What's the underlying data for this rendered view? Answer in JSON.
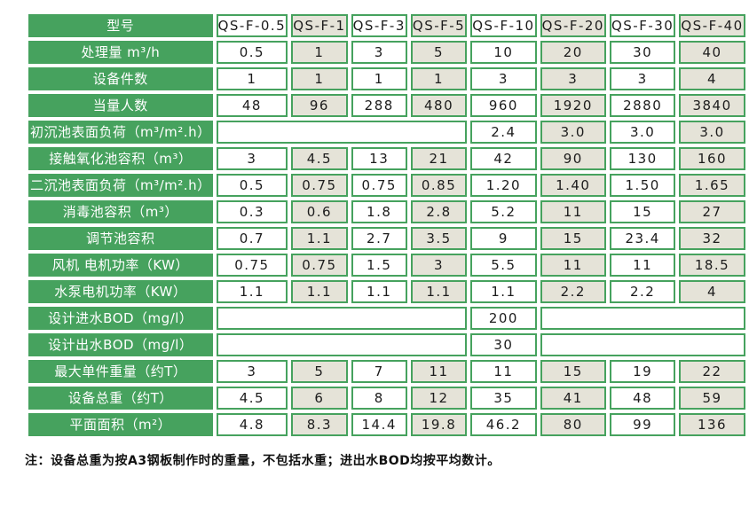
{
  "colors": {
    "green": "#46A25E",
    "shaded_cell": "#E5E3D8",
    "cell_text": "#1c1c1c",
    "label_text": "#ffffff"
  },
  "table": {
    "header": {
      "label": "型号",
      "models": [
        "QS-F-0.5",
        "QS-F-1",
        "QS-F-3",
        "QS-F-5",
        "QS-F-10",
        "QS-F-20",
        "QS-F-30",
        "QS-F-40"
      ]
    },
    "rows": [
      {
        "label": "处理量 m³/h",
        "cells": [
          "0.5",
          "1",
          "3",
          "5",
          "10",
          "20",
          "30",
          "40"
        ]
      },
      {
        "label": "设备件数",
        "cells": [
          "1",
          "1",
          "1",
          "1",
          "3",
          "3",
          "3",
          "4"
        ]
      },
      {
        "label": "当量人数",
        "cells": [
          "48",
          "96",
          "288",
          "480",
          "960",
          "1920",
          "2880",
          "3840"
        ]
      },
      {
        "label": "初沉池表面负荷（m³/m².h）",
        "cells": [
          {
            "v": "",
            "span": 4
          },
          "2.4",
          "3.0",
          "3.0",
          "3.0"
        ]
      },
      {
        "label": "接触氧化池容积（m³）",
        "cells": [
          "3",
          "4.5",
          "13",
          "21",
          "42",
          "90",
          "130",
          "160"
        ]
      },
      {
        "label": "二沉池表面负荷（m³/m².h）",
        "cells": [
          "0.5",
          "0.75",
          "0.75",
          "0.85",
          "1.20",
          "1.40",
          "1.50",
          "1.65"
        ]
      },
      {
        "label": "消毒池容积（m³）",
        "cells": [
          "0.3",
          "0.6",
          "1.8",
          "2.8",
          "5.2",
          "11",
          "15",
          "27"
        ]
      },
      {
        "label": "调节池容积",
        "cells": [
          "0.7",
          "1.1",
          "2.7",
          "3.5",
          "9",
          "15",
          "23.4",
          "32"
        ]
      },
      {
        "label": "风机 电机功率（KW）",
        "cells": [
          "0.75",
          "0.75",
          "1.5",
          "3",
          "5.5",
          "11",
          "11",
          "18.5"
        ]
      },
      {
        "label": "水泵电机功率（KW）",
        "cells": [
          "1.1",
          "1.1",
          "1.1",
          "1.1",
          "1.1",
          "2.2",
          "2.2",
          "4"
        ]
      },
      {
        "label": "设计进水BOD（mg/l）",
        "cells": [
          {
            "v": "",
            "span": 4
          },
          "200",
          {
            "v": "",
            "span": 3
          }
        ]
      },
      {
        "label": "设计出水BOD（mg/l）",
        "cells": [
          {
            "v": "",
            "span": 4
          },
          "30",
          {
            "v": "",
            "span": 3
          }
        ]
      },
      {
        "label": "最大单件重量（约T）",
        "cells": [
          "3",
          "5",
          "7",
          "11",
          "11",
          "15",
          "19",
          "22"
        ]
      },
      {
        "label": "设备总重（约T）",
        "cells": [
          "4.5",
          "6",
          "8",
          "12",
          "35",
          "41",
          "48",
          "59"
        ]
      },
      {
        "label": "平面面积（m²）",
        "cells": [
          "4.8",
          "8.3",
          "14.4",
          "19.8",
          "46.2",
          "80",
          "99",
          "136"
        ]
      }
    ]
  },
  "note": "注：设备总重为按A3钢板制作时的重量，不包括水重；进出水BOD均按平均数计。"
}
